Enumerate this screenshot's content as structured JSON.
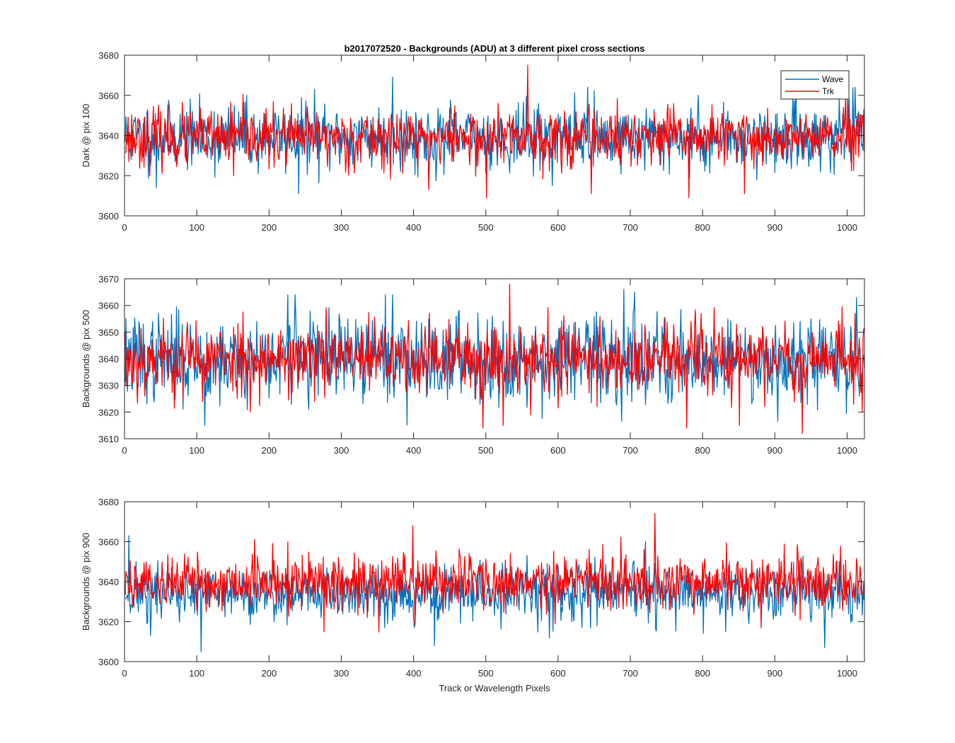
{
  "chart_data": [
    {
      "type": "line",
      "title": "b2017072520 - Backgrounds (ADU) at 3 different pixel cross sections",
      "xlabel": "",
      "ylabel": "Dark @ pix 100",
      "xlim": [
        0,
        1024
      ],
      "ylim": [
        3600,
        3680
      ],
      "xticks": [
        0,
        100,
        200,
        300,
        400,
        500,
        600,
        700,
        800,
        900,
        1000
      ],
      "yticks": [
        3600,
        3620,
        3640,
        3660,
        3680
      ],
      "grid": false,
      "legend": "top-right",
      "series": [
        {
          "name": "Wave",
          "color": "#0072bd",
          "noise": {
            "seed": 11,
            "mean": 3639,
            "sd": 8,
            "n": 1024
          },
          "spikes": [
            [
              43,
              3614
            ],
            [
              240,
              3611
            ],
            [
              370,
              3669
            ],
            [
              168,
              3660
            ],
            [
              262,
              3663
            ],
            [
              640,
              3664
            ],
            [
              928,
              3668
            ],
            [
              1000,
              3666
            ],
            [
              1010,
              3664
            ]
          ]
        },
        {
          "name": "Trk",
          "color": "#ff0000",
          "noise": {
            "seed": 23,
            "mean": 3639,
            "sd": 7,
            "n": 1024
          },
          "spikes": [
            [
              557,
              3675
            ],
            [
              500,
              3609
            ],
            [
              780,
              3609
            ],
            [
              857,
              3611
            ],
            [
              645,
              3611
            ],
            [
              150,
              3620
            ],
            [
              420,
              3613
            ]
          ]
        }
      ]
    },
    {
      "type": "line",
      "title": "",
      "xlabel": "",
      "ylabel": "Backgrounds @ pix 500",
      "xlim": [
        0,
        1024
      ],
      "ylim": [
        3610,
        3670
      ],
      "xticks": [
        0,
        100,
        200,
        300,
        400,
        500,
        600,
        700,
        800,
        900,
        1000
      ],
      "yticks": [
        3610,
        3620,
        3630,
        3640,
        3650,
        3660,
        3670
      ],
      "grid": false,
      "series": [
        {
          "name": "Wave",
          "color": "#0072bd",
          "noise": {
            "seed": 37,
            "mean": 3640,
            "sd": 8,
            "n": 1024
          },
          "spikes": [
            [
              110,
              3615
            ],
            [
              225,
              3664
            ],
            [
              235,
              3664
            ],
            [
              360,
              3664
            ],
            [
              370,
              3664
            ],
            [
              690,
              3666
            ],
            [
              705,
              3665
            ],
            [
              1012,
              3663
            ]
          ]
        },
        {
          "name": "Trk",
          "color": "#ff0000",
          "noise": {
            "seed": 53,
            "mean": 3640,
            "sd": 7,
            "n": 1024
          },
          "spikes": [
            [
              532,
              3668
            ],
            [
              495,
              3614
            ],
            [
              523,
              3615
            ],
            [
              777,
              3614
            ],
            [
              937,
              3612
            ],
            [
              850,
              3615
            ]
          ]
        }
      ]
    },
    {
      "type": "line",
      "title": "",
      "xlabel": "Track or Wavelength Pixels",
      "ylabel": "Backgrounds @ pix 900",
      "xlim": [
        0,
        1024
      ],
      "ylim": [
        3600,
        3680
      ],
      "xticks": [
        0,
        100,
        200,
        300,
        400,
        500,
        600,
        700,
        800,
        900,
        1000
      ],
      "yticks": [
        3600,
        3620,
        3640,
        3660,
        3680
      ],
      "grid": false,
      "series": [
        {
          "name": "Wave",
          "color": "#0072bd",
          "noise": {
            "seed": 71,
            "mean": 3634,
            "sd": 7,
            "n": 1024
          },
          "spikes": [
            [
              105,
              3605
            ],
            [
              428,
              3608
            ],
            [
              968,
              3607
            ],
            [
              5,
              3663
            ],
            [
              35,
              3613
            ],
            [
              720,
              3660
            ]
          ]
        },
        {
          "name": "Trk",
          "color": "#ff0000",
          "noise": {
            "seed": 89,
            "mean": 3640,
            "sd": 7,
            "n": 1024
          },
          "spikes": [
            [
              733,
              3674
            ],
            [
              398,
              3668
            ],
            [
              275,
              3615
            ],
            [
              880,
              3617
            ]
          ]
        }
      ]
    }
  ]
}
